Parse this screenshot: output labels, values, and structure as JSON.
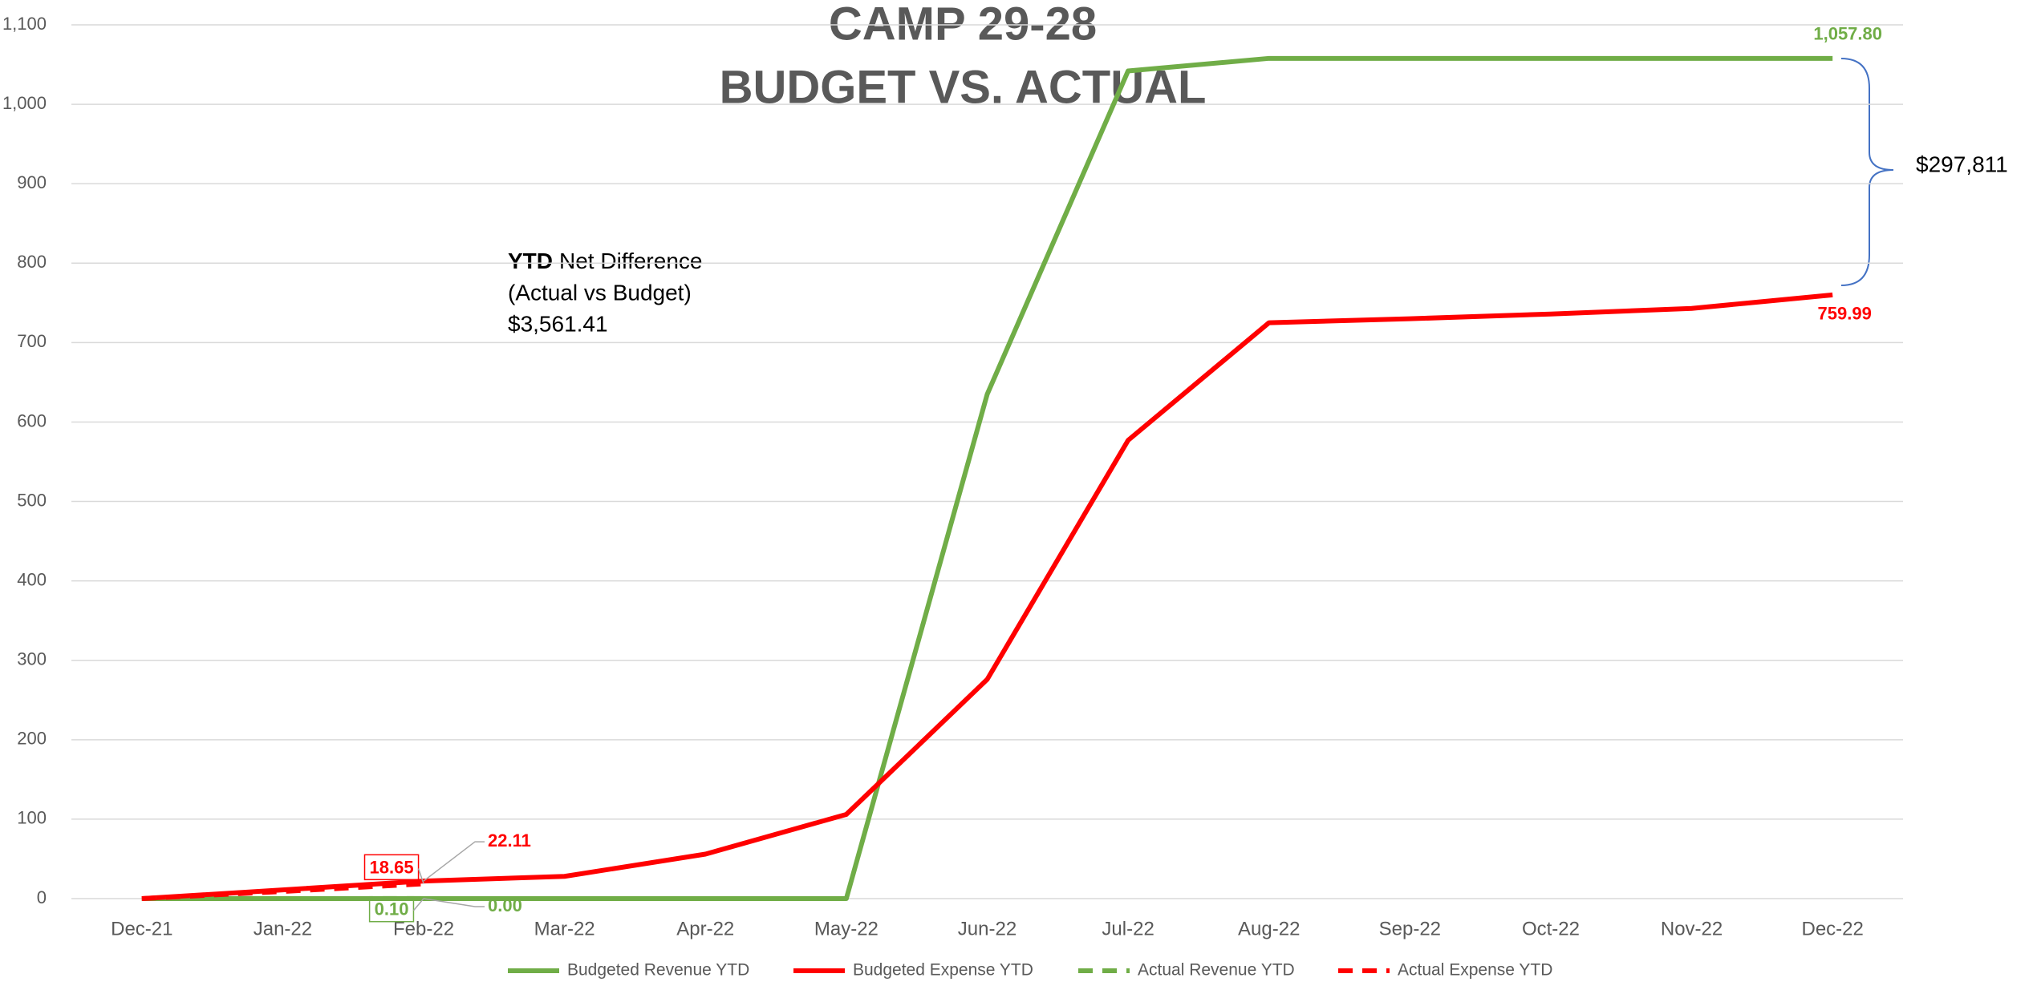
{
  "chart_data": {
    "type": "line",
    "title": [
      "CAMP 29-28",
      "BUDGET VS. ACTUAL"
    ],
    "categories": [
      "Dec-21",
      "Jan-22",
      "Feb-22",
      "Mar-22",
      "Apr-22",
      "May-22",
      "Jun-22",
      "Jul-22",
      "Aug-22",
      "Sep-22",
      "Oct-22",
      "Nov-22",
      "Dec-22"
    ],
    "series": [
      {
        "name": "Budgeted Revenue YTD",
        "color": "#70ad47",
        "dashed": false,
        "values": [
          0,
          0,
          0,
          0,
          0,
          0,
          635,
          1042,
          1057.8,
          1057.8,
          1057.8,
          1057.8,
          1057.8
        ],
        "value_labels": [
          null,
          null,
          "0.00",
          null,
          null,
          null,
          null,
          null,
          null,
          null,
          null,
          null,
          "1,057.80"
        ]
      },
      {
        "name": "Budgeted Expense YTD",
        "color": "#ff0000",
        "dashed": false,
        "values": [
          0,
          11,
          22.11,
          28,
          56,
          106,
          276,
          577,
          725,
          730,
          736,
          743,
          759.99
        ],
        "value_labels": [
          null,
          null,
          "22.11",
          null,
          null,
          null,
          null,
          null,
          null,
          null,
          null,
          null,
          "759.99"
        ]
      },
      {
        "name": "Actual Revenue YTD",
        "color": "#70ad47",
        "dashed": true,
        "values": [
          0,
          0,
          0.1,
          null,
          null,
          null,
          null,
          null,
          null,
          null,
          null,
          null,
          null
        ],
        "value_labels": [
          null,
          null,
          "0.10",
          null,
          null,
          null,
          null,
          null,
          null,
          null,
          null,
          null,
          null
        ]
      },
      {
        "name": "Actual Expense YTD",
        "color": "#ff0000",
        "dashed": true,
        "values": [
          0,
          9,
          18.65,
          null,
          null,
          null,
          null,
          null,
          null,
          null,
          null,
          null,
          null
        ],
        "value_labels": [
          null,
          null,
          "18.65",
          null,
          null,
          null,
          null,
          null,
          null,
          null,
          null,
          null,
          null
        ]
      }
    ],
    "ylim": [
      0,
      1100
    ],
    "yticks": [
      0,
      100,
      200,
      300,
      400,
      500,
      600,
      700,
      800,
      900,
      {
        "value": 1000,
        "label": "1,000"
      },
      {
        "value": 1100,
        "label": "1,100"
      }
    ],
    "grid": true,
    "legend": "bottom",
    "annotations": {
      "net_bold": "YTD",
      "net_label": "Net Difference",
      "net_sub": "(Actual vs Budget)",
      "net_value": "$3,561.41",
      "gap_value": "$297,811"
    }
  }
}
